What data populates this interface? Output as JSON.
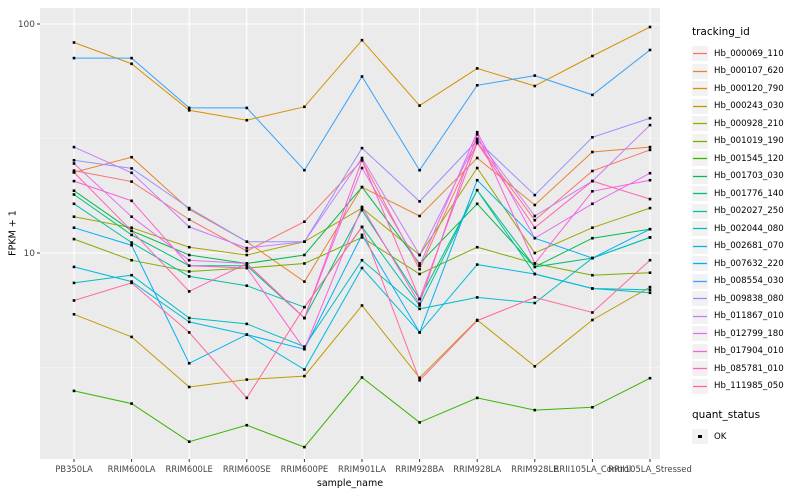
{
  "colors": {
    "panel_bg": "#EBEBEB",
    "grid_major": "#FFFFFF",
    "grid_minor": "#F5F5F5",
    "marker": "#000000",
    "tick_label": "#444444",
    "legend_key_bg": "#F2F2F2"
  },
  "chart_data": {
    "type": "line",
    "title": "",
    "xlabel": "sample_name",
    "ylabel": "FPKM + 1",
    "y_scale": "log10",
    "ylim": [
      1.2,
      117
    ],
    "y_ticks": [
      100,
      10
    ],
    "y_minor_breaks": [
      31.62,
      3.162
    ],
    "grid": "on",
    "legend_position": "right",
    "legend_title": "tracking_id",
    "quant_legend_title": "quant_status",
    "quant_status_label": "OK",
    "categories": [
      "PB350LA",
      "RRIM600LA",
      "RRIM600LE",
      "RRIM600SE",
      "RRIM600PE",
      "RRIM901LA",
      "RRIM928BA",
      "RRIM928LA",
      "RRIM928LE",
      "RRII105LA_Control",
      "RRII105LA_Stressed"
    ],
    "series": [
      {
        "name": "Hb_000069_110",
        "color": "#F8766D",
        "values": [
          22.9,
          20.5,
          14.0,
          10.2,
          13.7,
          25.4,
          8.5,
          30.5,
          13.9,
          22.8,
          28.2
        ]
      },
      {
        "name": "Hb_000107_620",
        "color": "#EA8331",
        "values": [
          22.5,
          26.2,
          15.5,
          11.2,
          7.5,
          19.4,
          14.5,
          26.0,
          16.2,
          27.6,
          29.0
        ]
      },
      {
        "name": "Hb_000120_790",
        "color": "#D89000",
        "values": [
          83,
          67,
          42,
          38,
          43.5,
          85,
          44,
          64,
          53.6,
          72.5,
          97
        ]
      },
      {
        "name": "Hb_000243_030",
        "color": "#C09B00",
        "values": [
          5.4,
          4.3,
          2.6,
          2.8,
          2.9,
          5.9,
          2.85,
          5.1,
          3.2,
          5.1,
          7.1
        ]
      },
      {
        "name": "Hb_000928_210",
        "color": "#A3A500",
        "values": [
          14.4,
          12.9,
          10.6,
          9.8,
          11.2,
          15.7,
          9.8,
          23.5,
          10.0,
          12.9,
          15.7
        ]
      },
      {
        "name": "Hb_001019_190",
        "color": "#7CAE00",
        "values": [
          11.5,
          9.3,
          8.3,
          8.6,
          9.0,
          11.7,
          8.1,
          10.6,
          9.0,
          8.0,
          8.2
        ]
      },
      {
        "name": "Hb_001545_120",
        "color": "#39B600",
        "values": [
          2.5,
          2.2,
          1.5,
          1.77,
          1.42,
          2.86,
          1.82,
          2.33,
          2.06,
          2.12,
          2.84
        ]
      },
      {
        "name": "Hb_001703_030",
        "color": "#00BB4E",
        "values": [
          18.7,
          12.5,
          9.8,
          9.0,
          9.8,
          19.4,
          9.0,
          16.4,
          8.7,
          11.6,
          12.7
        ]
      },
      {
        "name": "Hb_001776_140",
        "color": "#00BF7D",
        "values": [
          18.0,
          12.0,
          8.8,
          8.8,
          5.2,
          15.4,
          6.3,
          18.8,
          8.7,
          9.5,
          11.7
        ]
      },
      {
        "name": "Hb_002027_250",
        "color": "#00C1A3",
        "values": [
          16.4,
          11.1,
          7.9,
          7.2,
          5.8,
          13.0,
          5.9,
          18.8,
          8.1,
          7.0,
          6.7
        ]
      },
      {
        "name": "Hb_002044_080",
        "color": "#00BFC4",
        "values": [
          7.4,
          8.0,
          5.2,
          4.9,
          3.9,
          9.3,
          5.7,
          6.4,
          6.05,
          9.5,
          11.7
        ]
      },
      {
        "name": "Hb_002681_070",
        "color": "#00BAE0",
        "values": [
          8.7,
          7.5,
          5.0,
          4.4,
          3.1,
          8.6,
          4.5,
          8.9,
          8.1,
          7.0,
          6.9
        ]
      },
      {
        "name": "Hb_007632_220",
        "color": "#00B0F6",
        "values": [
          12.9,
          10.8,
          3.3,
          4.4,
          3.8,
          12.0,
          4.5,
          20.8,
          11.6,
          9.5,
          12.7
        ]
      },
      {
        "name": "Hb_008554_030",
        "color": "#35A2FF",
        "values": [
          71,
          71,
          43,
          43,
          23,
          59,
          23,
          54,
          59.5,
          49,
          77
        ]
      },
      {
        "name": "Hb_009838_080",
        "color": "#9590FF",
        "values": [
          25.4,
          23.4,
          15.7,
          11.2,
          11.2,
          28.7,
          16.8,
          31.0,
          17.9,
          32,
          38.8
        ]
      },
      {
        "name": "Hb_011867_010",
        "color": "#C77CFF",
        "values": [
          29.0,
          22.4,
          13.0,
          10.5,
          11.2,
          26.0,
          9.8,
          31.5,
          14.5,
          20.6,
          36.2
        ]
      },
      {
        "name": "Hb_012799_180",
        "color": "#E76BF3",
        "values": [
          24.6,
          14.4,
          9.3,
          9.0,
          5.2,
          23.5,
          8.8,
          33.7,
          11.6,
          16.4,
          22.3
        ]
      },
      {
        "name": "Hb_017904_010",
        "color": "#FA62DB",
        "values": [
          20.6,
          16.9,
          8.8,
          8.6,
          3.8,
          15.9,
          6.0,
          33.0,
          9.0,
          18.6,
          20.8
        ]
      },
      {
        "name": "Hb_085781_010",
        "color": "#FF62BC",
        "values": [
          22.5,
          12.5,
          6.8,
          9.0,
          5.2,
          25.4,
          6.3,
          30.2,
          12.9,
          20.6,
          17.2
        ]
      },
      {
        "name": "Hb_111985_050",
        "color": "#FF6A98",
        "values": [
          6.2,
          7.4,
          4.5,
          2.33,
          5.8,
          13.0,
          2.78,
          5.07,
          6.4,
          5.5,
          9.3
        ]
      }
    ]
  }
}
